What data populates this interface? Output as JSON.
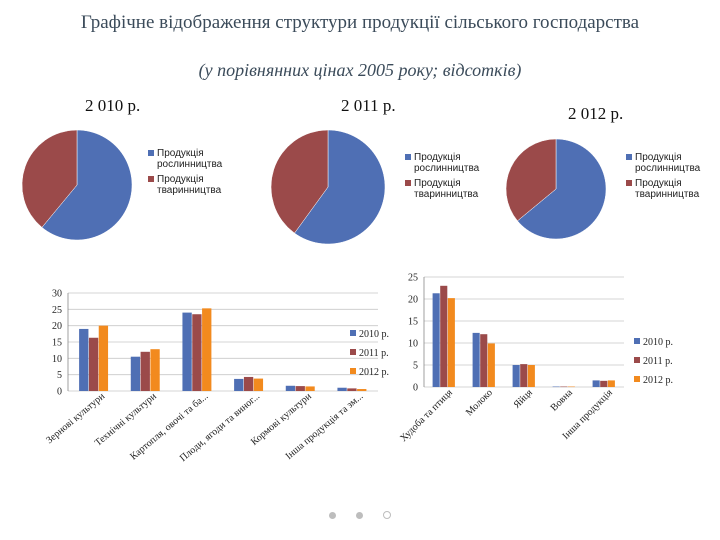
{
  "header": {
    "title": "Графічне відображення структури продукції сільського господарства",
    "subtitle": "(у порівнянних цінах 2005 року; відсотків)"
  },
  "chart_data": [
    {
      "type": "pie",
      "title": "2 010 р.",
      "categories": [
        "Продукція рослинництва",
        "Продукція тваринництва"
      ],
      "values": [
        61,
        39
      ],
      "colors": [
        "#4f6fb4",
        "#9b4a4a"
      ]
    },
    {
      "type": "pie",
      "title": "2 011 р.",
      "categories": [
        "Продукція рослинництва",
        "Продукція тваринництва"
      ],
      "values": [
        60,
        40
      ],
      "colors": [
        "#4f6fb4",
        "#9b4a4a"
      ]
    },
    {
      "type": "pie",
      "title": "2 012 р.",
      "categories": [
        "Продукція рослинництва",
        "Продукція тваринництва"
      ],
      "values": [
        64,
        36
      ],
      "colors": [
        "#4f6fb4",
        "#9b4a4a"
      ]
    },
    {
      "type": "bar",
      "title": "",
      "categories": [
        "Зернові культури",
        "Технічні культури",
        "Картопля, овочі та ба...",
        "Плоди, ягоди та виног...",
        "Кормові культури",
        "Інша продукція та зм..."
      ],
      "series": [
        {
          "name": "2010 р.",
          "values": [
            19.0,
            10.5,
            24.0,
            3.7,
            1.6,
            1.0
          ]
        },
        {
          "name": "2011 р.",
          "values": [
            16.3,
            12.0,
            23.5,
            4.3,
            1.5,
            0.8
          ]
        },
        {
          "name": "2012 р.",
          "values": [
            20.0,
            12.8,
            25.3,
            3.8,
            1.4,
            0.6
          ]
        }
      ],
      "ylim": [
        0,
        30
      ],
      "yticks": [
        0,
        5,
        10,
        15,
        20,
        25,
        30
      ],
      "grid": true,
      "legend": "right",
      "colors": [
        "#4f6fb4",
        "#9b4a4a",
        "#f28a1e"
      ]
    },
    {
      "type": "bar",
      "title": "",
      "categories": [
        "Худоба та птиця",
        "Молоко",
        "Яйця",
        "Вовна",
        "Інша продукція"
      ],
      "series": [
        {
          "name": "2010 р.",
          "values": [
            21.3,
            12.3,
            5.0,
            0.1,
            1.5
          ]
        },
        {
          "name": "2011 р.",
          "values": [
            23.0,
            12.0,
            5.2,
            0.1,
            1.4
          ]
        },
        {
          "name": "2012 р.",
          "values": [
            20.2,
            9.9,
            5.0,
            0.1,
            1.5
          ]
        }
      ],
      "ylim": [
        0,
        25
      ],
      "yticks": [
        0,
        5,
        10,
        15,
        20,
        25
      ],
      "grid": true,
      "legend": "right",
      "colors": [
        "#4f6fb4",
        "#9b4a4a",
        "#f28a1e"
      ]
    }
  ],
  "pie_legends": [
    [
      "Продукція рослинництва",
      "Продукція тваринництва"
    ],
    [
      "Продукція рослинництва",
      "Продукція тваринництва"
    ],
    [
      "Продукція рослинництва",
      "Продукція тваринництва"
    ]
  ],
  "bar_legend": [
    "2010 р.",
    "2011 р.",
    "2012 р."
  ]
}
